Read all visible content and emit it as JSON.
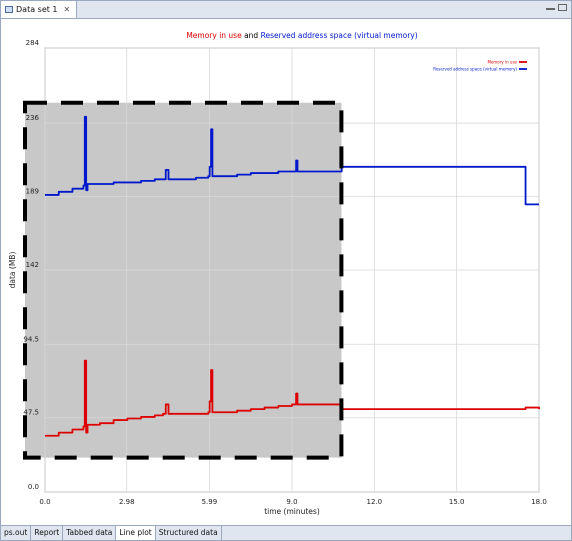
{
  "window": {
    "tab_title": "Data set 1",
    "tab_icon": "chart-tab-icon",
    "close_glyph": "✕"
  },
  "bottom_tabs": [
    {
      "label": "ps.out",
      "active": false
    },
    {
      "label": "Report",
      "active": false
    },
    {
      "label": "Tabbed data",
      "active": false
    },
    {
      "label": "Line plot",
      "active": true
    },
    {
      "label": "Structured data",
      "active": false
    }
  ],
  "colors": {
    "memory": "#dd0000",
    "reserved": "#0018cc",
    "selection_fill": "#c8c8c8",
    "grid": "#d8d8d8"
  },
  "chart_data": {
    "type": "line",
    "title_parts": [
      {
        "text": "Memory in use",
        "color": "#dd0000"
      },
      {
        "text": " and ",
        "color": "#000000"
      },
      {
        "text": "Reserved address space (virtual memory)",
        "color": "#0018cc"
      }
    ],
    "xlabel": "time (minutes)",
    "ylabel": "data (MB)",
    "xlim": [
      0,
      18
    ],
    "ylim": [
      0,
      284
    ],
    "xticks": [
      0,
      2.98,
      5.99,
      9.0,
      12.0,
      15.0,
      18.0
    ],
    "xtick_labels": [
      "0.0",
      "2.98",
      "5.99",
      "9.0",
      "12.0",
      "15.0",
      "18.0"
    ],
    "yticks": [
      0,
      47.5,
      94.5,
      142,
      189,
      236,
      284
    ],
    "ytick_labels": [
      "0.0",
      "47.5",
      "94.5",
      "142",
      "189",
      "236",
      "284"
    ],
    "legend": [
      "Memory in use",
      "Reserved address space (virtual memory)"
    ],
    "legend_position": "top-right",
    "grid": true,
    "selection": {
      "x": [
        -0.8,
        10.8
      ],
      "y": [
        22,
        249
      ]
    },
    "series": [
      {
        "name": "Memory in use",
        "color": "#dd0000",
        "x": [
          0,
          0.5,
          1.0,
          1.4,
          1.45,
          1.5,
          1.55,
          2.0,
          2.5,
          3.0,
          3.5,
          4.0,
          4.3,
          4.4,
          4.5,
          5.0,
          5.5,
          5.95,
          6.0,
          6.05,
          6.1,
          6.5,
          7.0,
          7.5,
          8.0,
          8.5,
          9.0,
          9.15,
          9.2,
          9.25,
          10.8,
          10.81,
          12,
          15,
          17.5,
          17.51,
          18
        ],
        "values": [
          36,
          38,
          40,
          42,
          84,
          38,
          43,
          44,
          46,
          47,
          48,
          49,
          50,
          56,
          50,
          50,
          50,
          51,
          58,
          78,
          51,
          51,
          52,
          53,
          54,
          55,
          56,
          63,
          56,
          56,
          56,
          53,
          53,
          53,
          53,
          54,
          53
        ]
      },
      {
        "name": "Reserved address space (virtual memory)",
        "color": "#0018cc",
        "x": [
          0,
          0.5,
          1.0,
          1.4,
          1.45,
          1.5,
          1.55,
          2.0,
          2.5,
          3.0,
          3.5,
          4.0,
          4.3,
          4.4,
          4.5,
          5.0,
          5.5,
          5.95,
          6.0,
          6.05,
          6.1,
          6.5,
          7.0,
          7.5,
          8.0,
          8.5,
          9.0,
          9.15,
          9.2,
          9.25,
          10.8,
          10.81,
          12,
          15,
          17.5,
          17.51,
          18
        ],
        "values": [
          190,
          192,
          194,
          196,
          240,
          193,
          197,
          197,
          198,
          198,
          199,
          200,
          200,
          206,
          200,
          200,
          201,
          202,
          208,
          232,
          202,
          202,
          203,
          204,
          204,
          205,
          205,
          212,
          205,
          205,
          205,
          208,
          208,
          208,
          208,
          184,
          184
        ]
      }
    ]
  }
}
